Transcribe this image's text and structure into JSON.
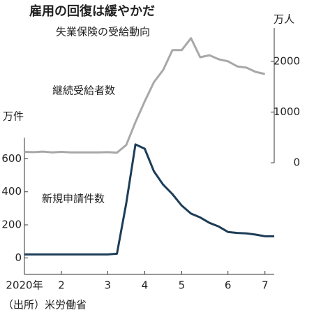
{
  "chart_data": {
    "type": "line",
    "title": "雇用の回復は緩やかだ",
    "subtitle": "失業保険の受給動向",
    "y_label": "万件",
    "y2_label": "万人",
    "source": "（出所）米労働省",
    "categories": [
      "2020年",
      null,
      null,
      null,
      "2",
      null,
      null,
      null,
      null,
      "3",
      null,
      null,
      null,
      "4",
      null,
      null,
      null,
      "5",
      null,
      null,
      null,
      null,
      "6",
      null,
      null,
      null,
      "7",
      null
    ],
    "series": [
      {
        "name": "継続受給者数",
        "color": "#a8a8a8",
        "axis": "y2",
        "values": [
          215,
          210,
          220,
          205,
          215,
          205,
          205,
          205,
          205,
          210,
          200,
          350,
          800,
          1210,
          1590,
          1830,
          2220,
          2220,
          2455,
          2080,
          2120,
          2040,
          2000,
          1900,
          1875,
          1790,
          1750,
          null
        ]
      },
      {
        "name": "新規申請件数",
        "color": "#1d3d57",
        "values": [
          21,
          21,
          21,
          21,
          21,
          21,
          21,
          21,
          21,
          21,
          25,
          330,
          687,
          661,
          524,
          443,
          386,
          317,
          268,
          245,
          212,
          190,
          157,
          151,
          148,
          141,
          131,
          131
        ]
      }
    ],
    "ylim": [
      -100,
      1350
    ],
    "yticks": [
      0,
      200,
      400,
      600
    ],
    "y2lim": [
      -2200,
      2520
    ],
    "y2ticks": [
      0,
      1000,
      2000
    ]
  }
}
